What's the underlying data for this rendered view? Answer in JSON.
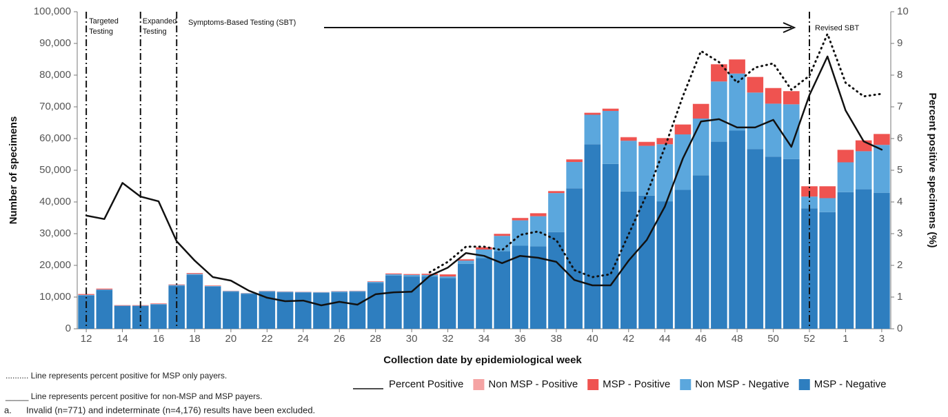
{
  "chart_data": {
    "type": "stacked-bar-line",
    "y_label": "Number of specimens",
    "y2_label": "Percent positive specimens (%)",
    "x_label": "Collection date by epidemiological week",
    "categories": [
      "12",
      null,
      "14",
      null,
      "16",
      null,
      "18",
      null,
      "20",
      null,
      "22",
      null,
      "24",
      null,
      "26",
      null,
      "28",
      null,
      "30",
      null,
      "32",
      null,
      "34",
      null,
      "36",
      null,
      "38",
      null,
      "40",
      null,
      "42",
      null,
      "44",
      null,
      "46",
      null,
      "48",
      null,
      "50",
      null,
      "52",
      null,
      "1",
      null,
      "3"
    ],
    "series": [
      {
        "name": "MSP - Negative",
        "color": "#2e7ebf",
        "values": [
          10500,
          12200,
          7200,
          7200,
          7600,
          13500,
          17000,
          13300,
          11700,
          11000,
          11700,
          11500,
          11400,
          11300,
          11500,
          11700,
          14500,
          16800,
          16500,
          16500,
          16000,
          20500,
          22300,
          24500,
          26200,
          26000,
          30500,
          44300,
          58200,
          52000,
          43300,
          42000,
          40200,
          43800,
          48400,
          59000,
          62500,
          56700,
          54300,
          53500,
          38000,
          36800,
          43100,
          44000,
          42900
        ]
      },
      {
        "name": "Non MSP - Negative",
        "color": "#5ba7dd",
        "values": [
          200,
          200,
          100,
          100,
          200,
          300,
          300,
          200,
          200,
          200,
          200,
          200,
          200,
          200,
          300,
          200,
          300,
          400,
          500,
          500,
          500,
          1000,
          2700,
          4800,
          8000,
          9500,
          12300,
          8300,
          9300,
          16700,
          16000,
          15700,
          18000,
          17500,
          17900,
          19000,
          18000,
          17800,
          16700,
          17300,
          3700,
          4400,
          9400,
          12000,
          15100
        ]
      },
      {
        "name": "MSP - Positive",
        "color": "#ef5350",
        "values": [
          250,
          250,
          150,
          150,
          150,
          150,
          250,
          150,
          50,
          50,
          50,
          50,
          50,
          50,
          50,
          50,
          150,
          250,
          250,
          350,
          650,
          400,
          700,
          600,
          700,
          900,
          600,
          800,
          600,
          700,
          1100,
          1200,
          1900,
          3100,
          4600,
          5400,
          4400,
          4900,
          4900,
          4100,
          3200,
          3700,
          3900,
          3400,
          3400
        ]
      },
      {
        "name": "Non MSP - Positive",
        "color": "#f5a3a3",
        "values": [
          50,
          50,
          50,
          50,
          50,
          50,
          50,
          50,
          50,
          50,
          50,
          50,
          50,
          50,
          50,
          50,
          50,
          50,
          50,
          50,
          50,
          100,
          100,
          100,
          100,
          100,
          100,
          100,
          100,
          100,
          100,
          100,
          100,
          100,
          100,
          100,
          100,
          100,
          100,
          100,
          100,
          100,
          100,
          100,
          100
        ]
      }
    ],
    "lines": [
      {
        "name": "Percent Positive",
        "axis": "y2",
        "color": "#111111",
        "style": "solid",
        "values": [
          3.57,
          3.46,
          4.6,
          4.17,
          4.02,
          2.76,
          2.15,
          1.63,
          1.52,
          1.2,
          0.98,
          0.87,
          0.89,
          0.74,
          0.85,
          0.76,
          1.09,
          1.15,
          1.17,
          1.67,
          1.93,
          2.39,
          2.3,
          2.07,
          2.3,
          2.24,
          2.11,
          1.54,
          1.37,
          1.37,
          2.15,
          2.8,
          3.85,
          5.37,
          6.54,
          6.61,
          6.35,
          6.35,
          6.59,
          5.74,
          7.37,
          8.59,
          6.89,
          5.91,
          5.65
        ]
      },
      {
        "axis": "y2",
        "color": "#111111",
        "style": "dotted",
        "values": [
          null,
          null,
          null,
          null,
          null,
          null,
          null,
          null,
          null,
          null,
          null,
          null,
          null,
          null,
          null,
          null,
          null,
          null,
          null,
          1.78,
          2.11,
          2.59,
          2.59,
          2.48,
          2.96,
          3.07,
          2.8,
          1.85,
          1.63,
          1.72,
          2.98,
          4.24,
          5.72,
          7.33,
          8.76,
          8.41,
          7.76,
          8.24,
          8.37,
          7.54,
          7.98,
          9.3,
          7.76,
          7.33,
          7.41
        ]
      }
    ],
    "ylim": [
      0,
      100000
    ],
    "yticks": [
      0,
      {
        "value": 10000,
        "label": "10,000"
      },
      {
        "value": 20000,
        "label": "20,000"
      },
      {
        "value": 30000,
        "label": "30,000"
      },
      {
        "value": 40000,
        "label": "40,000"
      },
      {
        "value": 50000,
        "label": "50,000"
      },
      {
        "value": 60000,
        "label": "60,000"
      },
      {
        "value": 70000,
        "label": "70,000"
      },
      {
        "value": 80000,
        "label": "80,000"
      },
      {
        "value": 90000,
        "label": "90,000"
      },
      {
        "value": 100000,
        "label": "100,000"
      }
    ],
    "y2lim": [
      0,
      10
    ],
    "y2ticks": [
      0,
      1,
      2,
      3,
      4,
      5,
      6,
      7,
      8,
      9,
      10
    ],
    "annotations": [
      "Targeted Testing",
      "Expanded Testing",
      "Symptoms-Based Testing (SBT)",
      "Revised SBT"
    ],
    "notes": [
      ".......... Line represents percent positive for MSP only payers.",
      "_____ Line represents percent positive for non-MSP and MSP payers."
    ],
    "footnote": {
      "marker": "a.",
      "text": "Invalid (n=771) and indeterminate (n=4,176) results have been excluded."
    },
    "legend": "bottom-right"
  }
}
